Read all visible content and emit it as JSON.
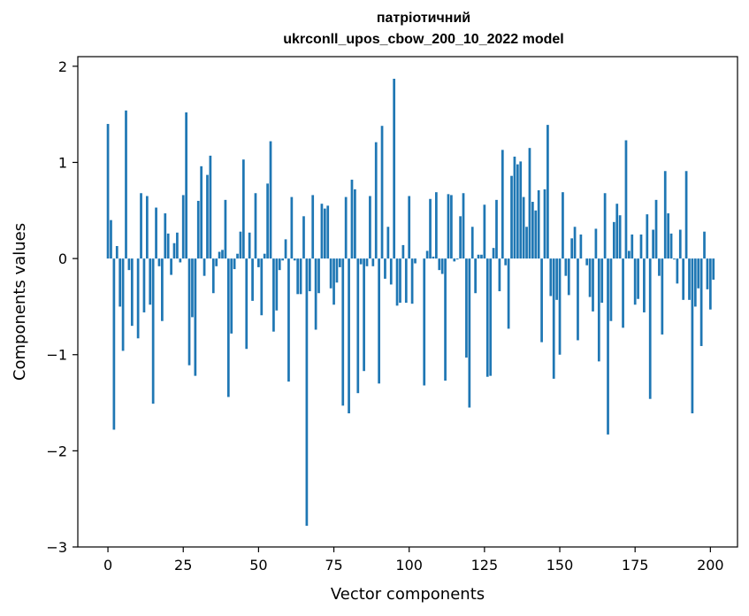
{
  "chart_data": {
    "type": "bar",
    "title_lines": [
      "патріотичний",
      "ukrconll_upos_cbow_200_10_2022 model"
    ],
    "xlabel": "Vector components",
    "ylabel": "Components values",
    "xlim": [
      -10,
      209
    ],
    "ylim": [
      -3,
      2.1
    ],
    "xticks": [
      0,
      25,
      50,
      75,
      100,
      125,
      150,
      175,
      200
    ],
    "yticks": [
      2,
      1,
      0,
      -1,
      -2,
      -3
    ],
    "ytick_labels": [
      "2",
      "1",
      "0",
      "−1",
      "−2",
      "−3"
    ],
    "grid": false,
    "bar_color": "#1f77b4",
    "values": [
      1.4,
      0.4,
      -1.78,
      0.13,
      -0.5,
      -0.96,
      1.54,
      -0.12,
      -0.7,
      0.0,
      -0.83,
      0.68,
      -0.56,
      0.65,
      -0.48,
      -1.51,
      0.53,
      -0.08,
      -0.65,
      0.47,
      0.26,
      -0.17,
      0.16,
      0.27,
      -0.04,
      0.66,
      1.52,
      -1.11,
      -0.61,
      -1.22,
      0.6,
      0.96,
      -0.18,
      0.87,
      1.07,
      -0.36,
      -0.08,
      0.07,
      0.09,
      0.61,
      -1.44,
      -0.78,
      -0.11,
      0.05,
      0.28,
      1.03,
      -0.94,
      0.27,
      -0.44,
      0.68,
      -0.09,
      -0.59,
      0.05,
      0.78,
      1.22,
      -0.76,
      -0.54,
      -0.12,
      -0.02,
      0.2,
      -1.28,
      0.64,
      -0.02,
      -0.37,
      -0.37,
      0.44,
      -2.78,
      -0.34,
      0.66,
      -0.74,
      -0.36,
      0.57,
      0.52,
      0.55,
      -0.31,
      -0.48,
      -0.25,
      -0.09,
      -1.53,
      0.64,
      -1.61,
      0.82,
      0.72,
      -1.4,
      -0.06,
      -1.17,
      -0.08,
      0.65,
      -0.08,
      1.21,
      -1.3,
      1.38,
      -0.21,
      0.33,
      -0.27,
      1.87,
      -0.49,
      -0.46,
      0.14,
      -0.46,
      0.65,
      -0.47,
      -0.05,
      0.0,
      0.0,
      -1.32,
      0.08,
      0.62,
      0.02,
      0.69,
      -0.12,
      -0.16,
      -1.27,
      0.67,
      0.66,
      -0.03,
      -0.01,
      0.44,
      0.68,
      -1.03,
      -1.55,
      0.33,
      -0.36,
      0.04,
      0.04,
      0.56,
      -1.23,
      -1.22,
      0.11,
      0.61,
      -0.34,
      1.13,
      -0.07,
      -0.73,
      0.86,
      1.06,
      0.98,
      1.01,
      0.64,
      0.33,
      1.15,
      0.59,
      0.5,
      0.71,
      -0.87,
      0.72,
      1.39,
      -0.39,
      -1.25,
      -0.43,
      -1.0,
      0.69,
      -0.18,
      -0.38,
      0.21,
      0.33,
      -0.85,
      0.25,
      0.0,
      -0.07,
      -0.4,
      -0.55,
      0.31,
      -1.07,
      -0.46,
      0.68,
      -1.83,
      -0.65,
      0.38,
      0.57,
      0.45,
      -0.72,
      1.23,
      0.08,
      0.25,
      -0.48,
      -0.42,
      0.25,
      -0.56,
      0.46,
      -1.46,
      0.3,
      0.61,
      -0.18,
      -0.79,
      0.91,
      0.47,
      0.26,
      -0.01,
      -0.26,
      0.3,
      -0.43,
      0.91,
      -0.43,
      -1.61,
      -0.5,
      -0.31,
      -0.91,
      0.28,
      -0.32,
      -0.53,
      -0.22
    ]
  }
}
